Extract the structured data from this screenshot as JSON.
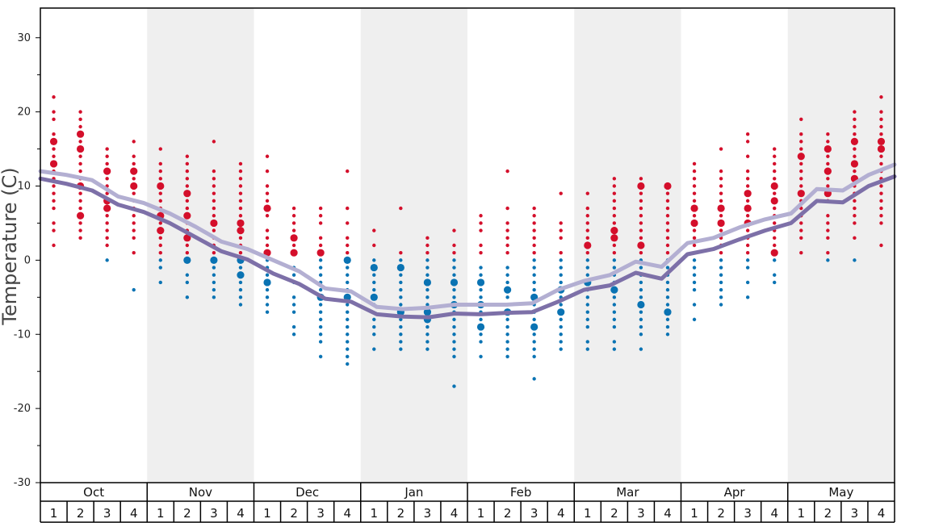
{
  "chart_data": {
    "type": "scatter",
    "title": "",
    "ylabel": "Temperature (C)",
    "xlabel": "",
    "ylim": [
      -30,
      34
    ],
    "yticks": [
      -30,
      -20,
      -10,
      0,
      10,
      20,
      30
    ],
    "grid": false,
    "months": [
      "Oct",
      "Nov",
      "Dec",
      "Jan",
      "Feb",
      "Mar",
      "Apr",
      "May"
    ],
    "weeks": [
      "1",
      "2",
      "3",
      "4"
    ],
    "colors": {
      "warm_dot": "#d40f2b",
      "cold_dot": "#0a73b3",
      "avg_high_line": "#b3afd2",
      "avg_low_line": "#7d70a8",
      "band_shade": "#efefef"
    },
    "series": [
      {
        "key": "avg_high",
        "values": [
          12.0,
          11.5,
          10.8,
          8.6,
          7.7,
          6.3,
          4.5,
          2.5,
          1.5,
          0,
          -1.5,
          -3.8,
          -4.2,
          -6.3,
          -6.6,
          -6.4,
          -6.0,
          -6.0,
          -6.0,
          -5.8,
          -4.0,
          -2.8,
          -2.0,
          -0.2,
          -0.9,
          2.3,
          3.0,
          4.4,
          5.5,
          6.3,
          9.6,
          9.4,
          11.5,
          12.9
        ]
      },
      {
        "key": "avg_low",
        "values": [
          11.0,
          10.3,
          9.4,
          7.5,
          6.5,
          5.0,
          3.1,
          1.2,
          0.1,
          -1.8,
          -3.2,
          -5.2,
          -5.6,
          -7.3,
          -7.6,
          -7.7,
          -7.2,
          -7.3,
          -7.1,
          -7.0,
          -5.6,
          -4.0,
          -3.4,
          -1.7,
          -2.5,
          0.8,
          1.5,
          2.8,
          4.0,
          5.0,
          8.0,
          7.8,
          10.0,
          11.3
        ]
      }
    ],
    "weekly_observations": [
      {
        "month": "Oct",
        "week": "1",
        "small": [
          22,
          20,
          19,
          17,
          16,
          15,
          14,
          13,
          12,
          11,
          10,
          9,
          8,
          7,
          5,
          4,
          2
        ],
        "large": [
          16,
          13
        ]
      },
      {
        "month": "Oct",
        "week": "2",
        "small": [
          20,
          19,
          18,
          16,
          15,
          14,
          13,
          12,
          11,
          10,
          9,
          8,
          7,
          5,
          4,
          3
        ],
        "large": [
          17,
          15,
          10,
          6
        ]
      },
      {
        "month": "Oct",
        "week": "3",
        "small": [
          15,
          14,
          13,
          11,
          10,
          9,
          8,
          6,
          5,
          4,
          3,
          2,
          0
        ],
        "large": [
          12,
          8,
          7
        ]
      },
      {
        "month": "Oct",
        "week": "4",
        "small": [
          16,
          14,
          13,
          12,
          11,
          10,
          9,
          8,
          7,
          6,
          5,
          4,
          3,
          1,
          -4
        ],
        "large": [
          12,
          10
        ]
      },
      {
        "month": "Nov",
        "week": "1",
        "small": [
          15,
          13,
          12,
          11,
          9,
          8,
          7,
          5,
          3,
          2,
          1,
          0,
          -1,
          -3
        ],
        "large": [
          10,
          6,
          4
        ]
      },
      {
        "month": "Nov",
        "week": "2",
        "small": [
          14,
          13,
          12,
          11,
          10,
          8,
          7,
          5,
          4,
          2,
          1,
          -2,
          -3,
          -5
        ],
        "large": [
          9,
          6,
          3,
          0
        ]
      },
      {
        "month": "Nov",
        "week": "3",
        "small": [
          16,
          12,
          11,
          10,
          9,
          8,
          7,
          6,
          4,
          3,
          2,
          1,
          -1,
          -2,
          -3,
          -4,
          -5
        ],
        "large": [
          5,
          0
        ]
      },
      {
        "month": "Nov",
        "week": "4",
        "small": [
          13,
          12,
          11,
          10,
          9,
          8,
          7,
          6,
          3,
          2,
          1,
          -1,
          -3,
          -4,
          -5,
          -6
        ],
        "large": [
          5,
          4,
          0,
          -2
        ]
      },
      {
        "month": "Dec",
        "week": "1",
        "small": [
          14,
          12,
          10,
          9,
          8,
          6,
          4,
          3,
          2,
          0,
          -1,
          -2,
          -4,
          -5,
          -6,
          -7
        ],
        "large": [
          7,
          1,
          -3
        ]
      },
      {
        "month": "Dec",
        "week": "2",
        "small": [
          7,
          6,
          5,
          4,
          2,
          1,
          -1,
          -2,
          -3,
          -5,
          -6,
          -7,
          -9,
          -10
        ],
        "large": [
          3,
          1
        ]
      },
      {
        "month": "Dec",
        "week": "3",
        "small": [
          7,
          6,
          5,
          3,
          2,
          0,
          -1,
          -2,
          -3,
          -4,
          -6,
          -7,
          -8,
          -9,
          -10,
          -11,
          -13
        ],
        "large": [
          1,
          -5
        ]
      },
      {
        "month": "Dec",
        "week": "4",
        "small": [
          12,
          7,
          5,
          3,
          2,
          1,
          -1,
          -2,
          -3,
          -4,
          -5,
          -6,
          -7,
          -8,
          -9,
          -10,
          -11,
          -12,
          -13,
          -14
        ],
        "large": [
          0,
          -5
        ]
      },
      {
        "month": "Jan",
        "week": "1",
        "small": [
          4,
          2,
          0,
          -1,
          -2,
          -3,
          -4,
          -5,
          -6,
          -8,
          -9,
          -10,
          -12
        ],
        "large": [
          -1,
          -5
        ]
      },
      {
        "month": "Jan",
        "week": "2",
        "small": [
          7,
          1,
          0,
          -2,
          -3,
          -4,
          -5,
          -6,
          -7,
          -8,
          -9,
          -10,
          -11,
          -12
        ],
        "large": [
          -1,
          -7
        ]
      },
      {
        "month": "Jan",
        "week": "3",
        "small": [
          3,
          2,
          1,
          0,
          -1,
          -2,
          -3,
          -4,
          -5,
          -6,
          -7,
          -8,
          -9,
          -10,
          -11,
          -12
        ],
        "large": [
          -3,
          -7,
          -8
        ]
      },
      {
        "month": "Jan",
        "week": "4",
        "small": [
          4,
          2,
          1,
          0,
          -1,
          -2,
          -3,
          -4,
          -5,
          -6,
          -7,
          -8,
          -9,
          -10,
          -11,
          -12,
          -13,
          -17
        ],
        "large": [
          -3,
          -6
        ]
      },
      {
        "month": "Feb",
        "week": "1",
        "small": [
          6,
          5,
          4,
          2,
          1,
          -1,
          -2,
          -3,
          -4,
          -5,
          -6,
          -7,
          -8,
          -9,
          -10,
          -11,
          -13
        ],
        "large": [
          -3,
          -6,
          -9
        ]
      },
      {
        "month": "Feb",
        "week": "2",
        "small": [
          12,
          7,
          5,
          4,
          3,
          2,
          1,
          -1,
          -2,
          -3,
          -5,
          -6,
          -7,
          -8,
          -9,
          -10,
          -11,
          -12,
          -13
        ],
        "large": [
          -4,
          -7
        ]
      },
      {
        "month": "Feb",
        "week": "3",
        "small": [
          7,
          6,
          5,
          4,
          3,
          2,
          1,
          0,
          -1,
          -2,
          -3,
          -4,
          -6,
          -7,
          -8,
          -9,
          -10,
          -11,
          -12,
          -13,
          -16
        ],
        "large": [
          -5,
          -9
        ]
      },
      {
        "month": "Feb",
        "week": "4",
        "small": [
          9,
          5,
          4,
          3,
          1,
          0,
          -1,
          -2,
          -3,
          -4,
          -5,
          -6,
          -7,
          -8,
          -9,
          -10,
          -11,
          -12
        ],
        "large": [
          -4,
          -7
        ]
      },
      {
        "month": "Mar",
        "week": "1",
        "small": [
          9,
          7,
          6,
          5,
          4,
          3,
          1,
          0,
          -1,
          -2,
          -4,
          -5,
          -6,
          -7,
          -8,
          -9,
          -11,
          -12
        ],
        "large": [
          2,
          -3
        ]
      },
      {
        "month": "Mar",
        "week": "2",
        "small": [
          11,
          10,
          9,
          8,
          7,
          6,
          5,
          3,
          2,
          1,
          0,
          -1,
          -2,
          -3,
          -5,
          -6,
          -7,
          -8,
          -9,
          -11,
          -12
        ],
        "large": [
          4,
          3,
          -4
        ]
      },
      {
        "month": "Mar",
        "week": "3",
        "small": [
          11,
          10,
          9,
          8,
          7,
          6,
          5,
          4,
          3,
          1,
          0,
          -1,
          -2,
          -3,
          -4,
          -5,
          -6,
          -7,
          -8,
          -9,
          -10,
          -12
        ],
        "large": [
          10,
          2,
          -6
        ]
      },
      {
        "month": "Mar",
        "week": "4",
        "small": [
          10,
          9,
          8,
          7,
          6,
          5,
          4,
          3,
          2,
          1,
          0,
          -1,
          -2,
          -3,
          -4,
          -5,
          -6,
          -8,
          -9,
          -10
        ],
        "large": [
          10,
          -7
        ]
      },
      {
        "month": "Apr",
        "week": "1",
        "small": [
          13,
          12,
          11,
          10,
          9,
          8,
          7,
          6,
          4,
          3,
          2,
          1,
          0,
          -1,
          -2,
          -3,
          -4,
          -6,
          -8
        ],
        "large": [
          7,
          5
        ]
      },
      {
        "month": "Apr",
        "week": "2",
        "small": [
          15,
          12,
          11,
          10,
          9,
          8,
          7,
          6,
          4,
          3,
          2,
          1,
          0,
          -1,
          -2,
          -3,
          -4,
          -5,
          -6
        ],
        "large": [
          7,
          5
        ]
      },
      {
        "month": "Apr",
        "week": "3",
        "small": [
          17,
          16,
          14,
          12,
          11,
          10,
          8,
          6,
          4,
          3,
          2,
          1,
          0,
          -1,
          -3,
          -5
        ],
        "large": [
          9,
          7,
          5
        ]
      },
      {
        "month": "Apr",
        "week": "4",
        "small": [
          15,
          14,
          13,
          12,
          11,
          10,
          9,
          7,
          6,
          5,
          4,
          3,
          2,
          0,
          -2,
          -3
        ],
        "large": [
          10,
          8,
          1
        ]
      },
      {
        "month": "May",
        "week": "1",
        "small": [
          19,
          17,
          16,
          15,
          13,
          12,
          11,
          10,
          9,
          8,
          7,
          6,
          5,
          4,
          3,
          1
        ],
        "large": [
          14,
          9
        ]
      },
      {
        "month": "May",
        "week": "2",
        "small": [
          17,
          16,
          15,
          14,
          13,
          12,
          11,
          10,
          9,
          8,
          6,
          5,
          4,
          3,
          1,
          0
        ],
        "large": [
          15,
          12,
          9
        ]
      },
      {
        "month": "May",
        "week": "3",
        "small": [
          20,
          19,
          18,
          17,
          15,
          14,
          12,
          11,
          10,
          9,
          8,
          7,
          6,
          5,
          3,
          0
        ],
        "large": [
          16,
          13,
          11
        ]
      },
      {
        "month": "May",
        "week": "4",
        "small": [
          22,
          20,
          19,
          18,
          17,
          16,
          14,
          13,
          12,
          11,
          10,
          9,
          8,
          7,
          6,
          5,
          2
        ],
        "large": [
          16,
          15
        ]
      }
    ]
  }
}
